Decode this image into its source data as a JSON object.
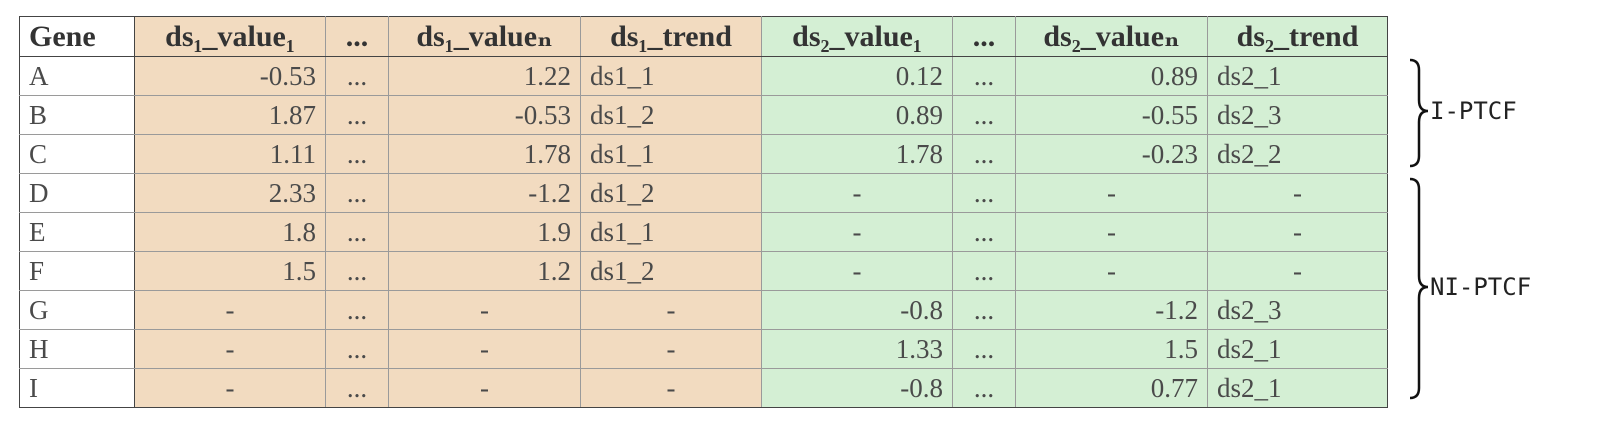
{
  "header": {
    "gene": "Gene",
    "ds1_value1": "ds₁_value₁",
    "ellipsis": "...",
    "ds1_valuen": "ds₁_valueₙ",
    "ds1_trend": "ds₁_trend",
    "ds2_value1": "ds₂_value₁",
    "ds2_valuen": "ds₂_valueₙ",
    "ds2_trend": "ds₂_trend"
  },
  "rows": [
    {
      "gene": "A",
      "ds1_v1": "-0.53",
      "ds1_e": "...",
      "ds1_vn": "1.22",
      "ds1_t": "ds1_1",
      "ds2_v1": "0.12",
      "ds2_e": "...",
      "ds2_vn": "0.89",
      "ds2_t": "ds2_1"
    },
    {
      "gene": "B",
      "ds1_v1": "1.87",
      "ds1_e": "...",
      "ds1_vn": "-0.53",
      "ds1_t": "ds1_2",
      "ds2_v1": "0.89",
      "ds2_e": "...",
      "ds2_vn": "-0.55",
      "ds2_t": "ds2_3"
    },
    {
      "gene": "C",
      "ds1_v1": "1.11",
      "ds1_e": "...",
      "ds1_vn": "1.78",
      "ds1_t": "ds1_1",
      "ds2_v1": "1.78",
      "ds2_e": "...",
      "ds2_vn": "-0.23",
      "ds2_t": "ds2_2"
    },
    {
      "gene": "D",
      "ds1_v1": "2.33",
      "ds1_e": "...",
      "ds1_vn": "-1.2",
      "ds1_t": "ds1_2",
      "ds2_v1": "-",
      "ds2_e": "...",
      "ds2_vn": "-",
      "ds2_t": "-"
    },
    {
      "gene": "E",
      "ds1_v1": "1.8",
      "ds1_e": "...",
      "ds1_vn": "1.9",
      "ds1_t": "ds1_1",
      "ds2_v1": "-",
      "ds2_e": "...",
      "ds2_vn": "-",
      "ds2_t": "-"
    },
    {
      "gene": "F",
      "ds1_v1": "1.5",
      "ds1_e": "...",
      "ds1_vn": "1.2",
      "ds1_t": "ds1_2",
      "ds2_v1": "-",
      "ds2_e": "...",
      "ds2_vn": "-",
      "ds2_t": "-"
    },
    {
      "gene": "G",
      "ds1_v1": "-",
      "ds1_e": "...",
      "ds1_vn": "-",
      "ds1_t": "-",
      "ds2_v1": "-0.8",
      "ds2_e": "...",
      "ds2_vn": "-1.2",
      "ds2_t": "ds2_3"
    },
    {
      "gene": "H",
      "ds1_v1": "-",
      "ds1_e": "...",
      "ds1_vn": "-",
      "ds1_t": "-",
      "ds2_v1": "1.33",
      "ds2_e": "...",
      "ds2_vn": "1.5",
      "ds2_t": "ds2_1"
    },
    {
      "gene": "I",
      "ds1_v1": "-",
      "ds1_e": "...",
      "ds1_vn": "-",
      "ds1_t": "-",
      "ds2_v1": "-0.8",
      "ds2_e": "...",
      "ds2_vn": "0.77",
      "ds2_t": "ds2_1"
    }
  ],
  "groups": {
    "i_ptcf": "I-PTCF",
    "ni_ptcf": "NI-PTCF"
  },
  "colors": {
    "dataset1_fill": "#f2dbc0",
    "dataset2_fill": "#d4efd4"
  }
}
